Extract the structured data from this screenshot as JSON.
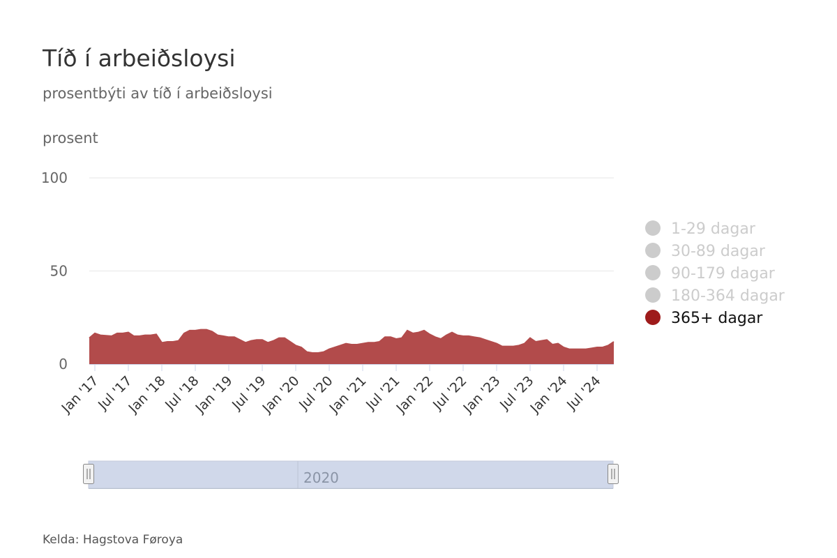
{
  "chart_data": {
    "type": "area",
    "title": "Tíð í arbeiðsloysi",
    "subtitle": "prosentbýti av tíð í arbeiðsloysi",
    "ylabel": "prosent",
    "xlabel": "",
    "ylim": [
      0,
      100
    ],
    "y_ticks": [
      "0",
      "50",
      "100"
    ],
    "x_ticks": [
      "Jan '17",
      "Jul '17",
      "Jan '18",
      "Jul '18",
      "Jan '19",
      "Jul '19",
      "Jan '20",
      "Jul '20",
      "Jan '21",
      "Jul '21",
      "Jan '22",
      "Jul '22",
      "Jan '23",
      "Jul '23",
      "Jan '24",
      "Jul '24"
    ],
    "x_range": [
      "2016-12",
      "2024-10"
    ],
    "grid": true,
    "legend_position": "right",
    "series": [
      {
        "name": "1-29 dagar",
        "visible": false,
        "color": "#cccccc",
        "values": []
      },
      {
        "name": "30-89 dagar",
        "visible": false,
        "color": "#cccccc",
        "values": []
      },
      {
        "name": "90-179 dagar",
        "visible": false,
        "color": "#cccccc",
        "values": []
      },
      {
        "name": "180-364 dagar",
        "visible": false,
        "color": "#cccccc",
        "values": []
      },
      {
        "name": "365+ dagar",
        "visible": true,
        "color": "#9e1b1b",
        "fill_color": "#b24b4b",
        "x": [
          "2016-12",
          "2017-01",
          "2017-02",
          "2017-04",
          "2017-05",
          "2017-06",
          "2017-07",
          "2017-08",
          "2017-09",
          "2017-10",
          "2017-11",
          "2017-12",
          "2018-01",
          "2018-02",
          "2018-03",
          "2018-04",
          "2018-05",
          "2018-06",
          "2018-07",
          "2018-08",
          "2018-09",
          "2018-10",
          "2018-11",
          "2018-12",
          "2019-01",
          "2019-02",
          "2019-03",
          "2019-04",
          "2019-05",
          "2019-06",
          "2019-07",
          "2019-08",
          "2019-09",
          "2019-10",
          "2019-11",
          "2019-12",
          "2020-01",
          "2020-02",
          "2020-03",
          "2020-04",
          "2020-05",
          "2020-06",
          "2020-07",
          "2020-08",
          "2020-09",
          "2020-10",
          "2020-11",
          "2020-12",
          "2021-01",
          "2021-02",
          "2021-03",
          "2021-04",
          "2021-05",
          "2021-06",
          "2021-07",
          "2021-08",
          "2021-09",
          "2021-10",
          "2021-11",
          "2021-12",
          "2022-01",
          "2022-02",
          "2022-03",
          "2022-04",
          "2022-05",
          "2022-06",
          "2022-07",
          "2022-08",
          "2022-09",
          "2022-10",
          "2022-11",
          "2022-12",
          "2023-01",
          "2023-02",
          "2023-03",
          "2023-04",
          "2023-05",
          "2023-06",
          "2023-07",
          "2023-08",
          "2023-09",
          "2023-10",
          "2023-11",
          "2023-12",
          "2024-01",
          "2024-02",
          "2024-03",
          "2024-04",
          "2024-05",
          "2024-06",
          "2024-07",
          "2024-08",
          "2024-09",
          "2024-10"
        ],
        "values": [
          14,
          16.5,
          15.5,
          15,
          16.5,
          16.5,
          17,
          15,
          15,
          15.5,
          15.5,
          16,
          11.5,
          12,
          12,
          12.5,
          16.5,
          18,
          18,
          18.5,
          18.5,
          17.5,
          15.5,
          15,
          14.5,
          14.5,
          13,
          11.5,
          12.5,
          13,
          13,
          11.5,
          12.5,
          14,
          14,
          12,
          10,
          9,
          6.5,
          6,
          6,
          6.5,
          8,
          9,
          10,
          11,
          10.5,
          10.5,
          11,
          11.5,
          11.5,
          12,
          14.5,
          14.5,
          13.5,
          14,
          18,
          16.5,
          17,
          18,
          16,
          14.5,
          13.5,
          15.5,
          17,
          15.5,
          15,
          15,
          14.5,
          14,
          13,
          12,
          11,
          9.5,
          9.5,
          9.5,
          10,
          11,
          14,
          12,
          12.5,
          13,
          10.5,
          11,
          9,
          8,
          8,
          8,
          8,
          8.5,
          9,
          9,
          10,
          12
        ]
      }
    ],
    "navigator": {
      "label": "2020"
    },
    "credits": "Kelda: Hagstova Føroya"
  }
}
